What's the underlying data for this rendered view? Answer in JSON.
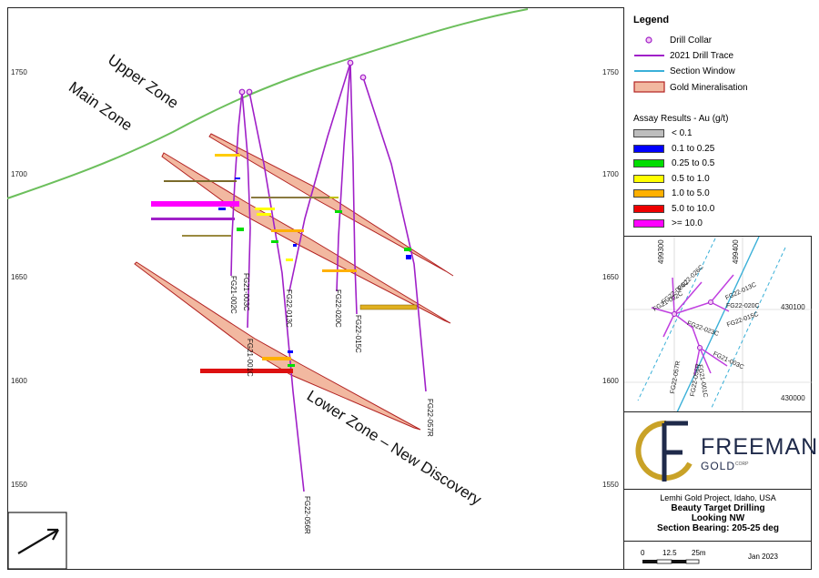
{
  "map": {
    "y_axis_ticks": [
      "1750",
      "1700",
      "1650",
      "1600",
      "1550"
    ],
    "zone_labels": {
      "upper": "Upper Zone",
      "main": "Main Zone",
      "lower": "Lower Zone – New Discovery"
    },
    "holes": [
      "FG21-002C",
      "FG21-003C",
      "FG22-013C",
      "FG22-020C",
      "FG22-015C",
      "FG21-001C",
      "FG22-057R",
      "FG22-056R"
    ],
    "colors": {
      "topography": "#6cbf5c",
      "drill_trace": "#a020c8",
      "section_window": "#3ab0d8",
      "mineral_fill": "#f2b8a0",
      "mineral_edge": "#b22222"
    }
  },
  "legend": {
    "title": "Legend",
    "items": [
      "Drill Collar",
      "2021 Drill Trace",
      "Section Window",
      "Gold Mineralisation"
    ],
    "assay_title": "Assay Results - Au (g/t)",
    "assay_bins": [
      {
        "label": "< 0.1",
        "color": "#bdbdbd"
      },
      {
        "label": "0.1 to 0.25",
        "color": "#0000ff"
      },
      {
        "label": "0.25 to 0.5",
        "color": "#00dd00"
      },
      {
        "label": "0.5 to 1.0",
        "color": "#ffff00"
      },
      {
        "label": "1.0 to 5.0",
        "color": "#ffb000"
      },
      {
        "label": "5.0 to 10.0",
        "color": "#ee0000"
      },
      {
        "label": ">= 10.0",
        "color": "#ff00ff"
      }
    ]
  },
  "inset": {
    "easting_labels": [
      "499300",
      "499400"
    ],
    "northing_labels": [
      "430100",
      "430000"
    ],
    "holes": [
      "FG22-013C",
      "FG22-020C",
      "FG22-015C",
      "FG22-023C",
      "FG21-003C",
      "FG21-001C",
      "FG22-056R",
      "FG22-057R",
      "FG21-002C",
      "FG22-026C",
      "FG22-024C"
    ]
  },
  "logo": {
    "name": "FREEMAN",
    "sub": "GOLD",
    "corp": "CORP"
  },
  "title_block": {
    "project": "Lemhi Gold Project, Idaho, USA",
    "target": "Beauty Target Drilling",
    "view": "Looking NW",
    "bearing": "Section Bearing: 205-25 deg"
  },
  "scale": {
    "labels": [
      "0",
      "12.5",
      "25m"
    ],
    "date": "Jan 2023"
  }
}
